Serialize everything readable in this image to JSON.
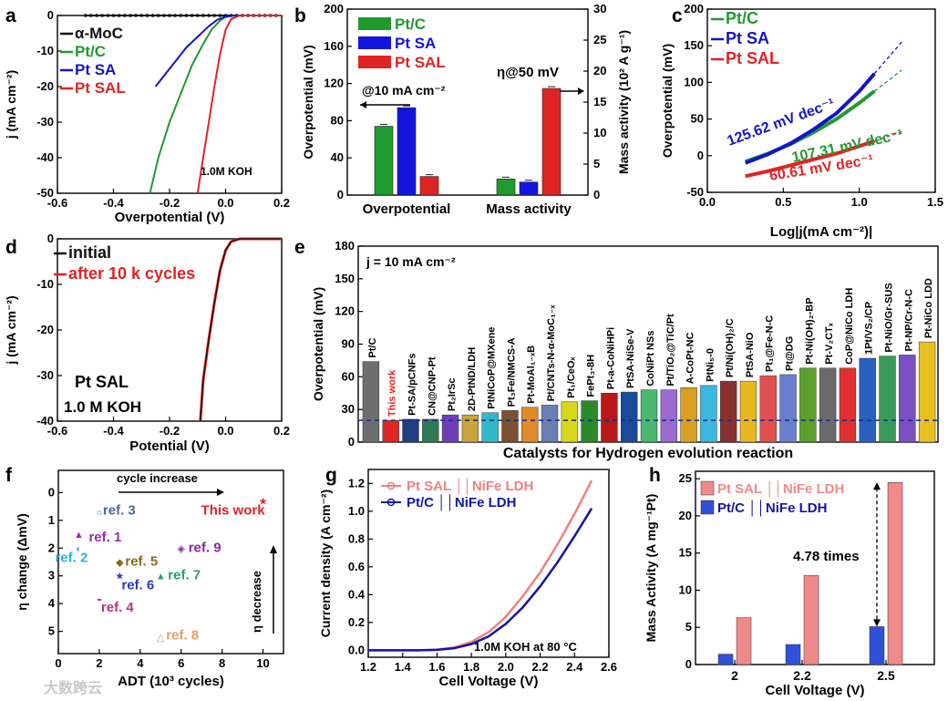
{
  "chart_data": [
    {
      "panel": "a",
      "type": "line",
      "xlabel": "Overpotential (V)",
      "ylabel": "j (mA cm⁻²)",
      "xlim": [
        -0.6,
        0.2
      ],
      "ylim": [
        -50,
        0
      ],
      "xticks": [
        "-0.6",
        "-0.4",
        "-0.2",
        "0.0",
        "0.2"
      ],
      "yticks": [
        "0",
        "-10",
        "-20",
        "-30",
        "-40",
        "-50"
      ],
      "annotation": "1.0M KOH",
      "series": [
        {
          "name": "α-MoC",
          "color": "#111111",
          "x": [
            -0.5,
            -0.4,
            -0.3,
            -0.2,
            -0.1,
            0.0,
            0.1,
            0.2
          ],
          "y": [
            0,
            0,
            0,
            0,
            0,
            0,
            0,
            0
          ]
        },
        {
          "name": "Pt/C",
          "color": "#1f9a2f",
          "x": [
            -0.27,
            -0.24,
            -0.2,
            -0.16,
            -0.12,
            -0.08,
            -0.05,
            -0.02,
            0.0,
            0.03,
            0.2
          ],
          "y": [
            -50,
            -40,
            -30,
            -22,
            -14,
            -8,
            -4,
            -1.5,
            -0.4,
            0,
            0
          ]
        },
        {
          "name": "Pt SA",
          "color": "#1414c8",
          "x": [
            -0.25,
            -0.22,
            -0.18,
            -0.14,
            -0.1,
            -0.06,
            -0.03,
            0.0,
            0.03,
            0.2
          ],
          "y": [
            -20,
            -17,
            -13,
            -9,
            -6,
            -3,
            -1.2,
            -0.3,
            0,
            0
          ]
        },
        {
          "name": "Pt SAL",
          "color": "#e02424",
          "x": [
            -0.1,
            -0.08,
            -0.06,
            -0.04,
            -0.02,
            0.0,
            0.02,
            0.05,
            0.2
          ],
          "y": [
            -50,
            -40,
            -30,
            -20,
            -11,
            -4,
            -1,
            0,
            0
          ]
        }
      ]
    },
    {
      "panel": "b",
      "type": "bar",
      "categories": [
        "Overpotential",
        "Mass activity"
      ],
      "ylabel": "Overpotential (mV)",
      "y2label": "Mass activity (10² A g⁻¹)",
      "ylim": [
        0,
        200
      ],
      "y2lim": [
        0,
        30
      ],
      "yticks": [
        "0",
        "40",
        "80",
        "120",
        "160",
        "200"
      ],
      "y2ticks": [
        "0",
        "5",
        "10",
        "15",
        "20",
        "25",
        "30"
      ],
      "annotations": [
        "@10 mA cm⁻²",
        "η@50 mV"
      ],
      "series": [
        {
          "name": "Pt/C",
          "color": "#1f9a2f",
          "values": [
            74,
            2.6
          ]
        },
        {
          "name": "Pt SA",
          "color": "#1414e0",
          "values": [
            94,
            2.1
          ]
        },
        {
          "name": "Pt SAL",
          "color": "#e02424",
          "values": [
            20,
            17.2
          ]
        }
      ]
    },
    {
      "panel": "c",
      "type": "line",
      "xlabel": "Log|j(mA cm⁻²)|",
      "ylabel": "Overpotential (mV)",
      "xlim": [
        0.0,
        1.5
      ],
      "ylim": [
        -50,
        200
      ],
      "xticks": [
        "0.0",
        "0.5",
        "1.0",
        "1.5"
      ],
      "yticks": [
        "-50",
        "0",
        "50",
        "100",
        "150",
        "200"
      ],
      "series": [
        {
          "name": "Pt/C",
          "color": "#1f9a2f",
          "slope_label": "107.31 mV dec⁻¹",
          "x": [
            0.25,
            0.4,
            0.55,
            0.7,
            0.85,
            1.0,
            1.1
          ],
          "y": [
            -8,
            3,
            16,
            32,
            50,
            72,
            88
          ]
        },
        {
          "name": "Pt SA",
          "color": "#1414c8",
          "slope_label": "125.62 mV dec⁻¹",
          "x": [
            0.25,
            0.4,
            0.55,
            0.7,
            0.85,
            1.0,
            1.1
          ],
          "y": [
            -10,
            2,
            17,
            36,
            58,
            88,
            112
          ]
        },
        {
          "name": "Pt SAL",
          "color": "#e02424",
          "slope_label": "60.61 mV dec⁻¹",
          "x": [
            0.25,
            0.4,
            0.55,
            0.7,
            0.85,
            1.0,
            1.1
          ],
          "y": [
            -28,
            -21,
            -13,
            -5,
            3,
            13,
            20
          ]
        }
      ]
    },
    {
      "panel": "d",
      "type": "line",
      "xlabel": "Potential (V)",
      "ylabel": "j (mA cm⁻²)",
      "xlim": [
        -0.6,
        0.2
      ],
      "ylim": [
        -40,
        0
      ],
      "xticks": [
        "-0.6",
        "-0.4",
        "-0.2",
        "0.0",
        "0.2"
      ],
      "yticks": [
        "0",
        "-10",
        "-20",
        "-30",
        "-40"
      ],
      "annotations": [
        "Pt SAL",
        "1.0 M KOH"
      ],
      "series": [
        {
          "name": "initial",
          "color": "#111111",
          "x": [
            -0.09,
            -0.08,
            -0.06,
            -0.04,
            -0.02,
            0.0,
            0.02,
            0.05,
            0.2
          ],
          "y": [
            -40,
            -31,
            -22,
            -14,
            -7,
            -2.5,
            -0.6,
            0,
            0
          ]
        },
        {
          "name": "after 10 k cycles",
          "color": "#e02424",
          "x": [
            -0.09,
            -0.08,
            -0.06,
            -0.04,
            -0.02,
            0.0,
            0.02,
            0.05,
            0.2
          ],
          "y": [
            -40,
            -31,
            -22,
            -14,
            -7,
            -2.5,
            -0.6,
            0,
            0
          ]
        }
      ]
    },
    {
      "panel": "e",
      "type": "bar",
      "title": "j = 10 mA cm⁻²",
      "xlabel": "Catalysts for Hydrogen evolution reaction",
      "ylabel": "Overpotential (mV)",
      "ylim": [
        0,
        180
      ],
      "yticks": [
        "0",
        "30",
        "60",
        "90",
        "120",
        "150",
        "180"
      ],
      "reference_line": 20,
      "categories": [
        "Pt/C",
        "This work",
        "Pt-SA/pCNFs",
        "CN@CNP-Pt",
        "Pt₂IrSc",
        "2D-PtND/LDH",
        "PtNiCoP@MXene",
        "Pt₃Fe/NMCS-A",
        "Pt-MoAl₁₋ₓB",
        "Pt/CNTs-N-α-MoC₁₋ₓ",
        "Pt₁/CeOₓ",
        "FePt₃-8H",
        "Pt-a-CoNiHPi",
        "PtSA-NiSe-V",
        "CoNiPt NSs",
        "Pt/TiO₂@TiC/Pt",
        "A-CoPt-NC",
        "PtNi₅-0",
        "Pt/Ni(OH)₂/C",
        "PtSA-NiO",
        "Pt₁@Fe-N-C",
        "Pt@DG",
        "Pt-Ni(OH)₂-BP",
        "Pt-V₂CTₓ",
        "CoP@NiCo LDH",
        "1Pt/VS₂/CP",
        "Pt-NiO/Gr-SUS",
        "Pt-NP/Cr-N-C",
        "Pt-NiCo LDD"
      ],
      "values": [
        74,
        20,
        21,
        21,
        25,
        25,
        27,
        29,
        32,
        34,
        37,
        38,
        45,
        46,
        48,
        48,
        50,
        52,
        56,
        56,
        61,
        62,
        68,
        68,
        68,
        77,
        79,
        80,
        92
      ],
      "colors": [
        "#6e6e6e",
        "#e02424",
        "#1e3f80",
        "#2f7a55",
        "#6f3fb5",
        "#c9a33a",
        "#2fb8c8",
        "#7a5030",
        "#e08a2a",
        "#6a7fb0",
        "#d8d81a",
        "#2a8a2a",
        "#b81818",
        "#1a4a9a",
        "#4ab870",
        "#9a6ad0",
        "#d8a020",
        "#3ab8e0",
        "#8a3030",
        "#e8b820",
        "#e05050",
        "#6a7fd0",
        "#5aa02a",
        "#6a6a6a",
        "#e03030",
        "#2a60c0",
        "#3a9a5a",
        "#7a50c0",
        "#e8c020"
      ]
    },
    {
      "panel": "f",
      "type": "scatter",
      "xlabel": "ADT (10³ cycles)",
      "ylabel": "η change (ΔmV)",
      "xlim": [
        0,
        11
      ],
      "ylim": [
        5.8,
        -0.8
      ],
      "xticks": [
        "0",
        "2",
        "4",
        "6",
        "8",
        "10"
      ],
      "yticks": [
        "0",
        "1",
        "2",
        "3",
        "4",
        "5"
      ],
      "annotations": [
        "cycle increase",
        "η decrease"
      ],
      "points": [
        {
          "label": "ref. 1",
          "x": 1.0,
          "y": 1.5,
          "color": "#9a2ab0",
          "marker": "▲"
        },
        {
          "label": "ref. 2",
          "x": 1.0,
          "y": 2.0,
          "color": "#2ab0e0",
          "marker": "◐"
        },
        {
          "label": "ref. 3",
          "x": 2.0,
          "y": 0.7,
          "color": "#4a6a9a",
          "marker": "○"
        },
        {
          "label": "ref. 4",
          "x": 2.0,
          "y": 3.8,
          "color": "#b8308a",
          "marker": "◒"
        },
        {
          "label": "ref. 5",
          "x": 3.0,
          "y": 2.5,
          "color": "#8a6a1a",
          "marker": "◆"
        },
        {
          "label": "ref. 6",
          "x": 3.0,
          "y": 3.0,
          "color": "#2a3ab8",
          "marker": "★"
        },
        {
          "label": "ref. 7",
          "x": 5.0,
          "y": 3.0,
          "color": "#2a9a7a",
          "marker": "▲"
        },
        {
          "label": "ref. 8",
          "x": 5.0,
          "y": 5.2,
          "color": "#e8a060",
          "marker": "△"
        },
        {
          "label": "ref. 9",
          "x": 6.0,
          "y": 2.0,
          "color": "#8a2a9a",
          "marker": "◈"
        },
        {
          "label": "This work",
          "x": 10.0,
          "y": 0.3,
          "color": "#e02424",
          "marker": "★"
        }
      ]
    },
    {
      "panel": "g",
      "type": "line",
      "xlabel": "Cell Voltage (V)",
      "ylabel": "Current density (A cm⁻²)",
      "xlim": [
        1.2,
        2.6
      ],
      "ylim": [
        -0.05,
        1.3
      ],
      "xticks": [
        "1.2",
        "1.4",
        "1.6",
        "1.8",
        "2.0",
        "2.2",
        "2.4",
        "2.6"
      ],
      "yticks": [
        "0.0",
        "0.2",
        "0.4",
        "0.6",
        "0.8",
        "1.0",
        "1.2"
      ],
      "annotation": "1.0M KOH at 80 °C",
      "series": [
        {
          "name": "Pt SAL ││NiFe LDH",
          "color": "#f08080",
          "x": [
            1.2,
            1.5,
            1.6,
            1.7,
            1.8,
            1.9,
            2.0,
            2.1,
            2.2,
            2.3,
            2.4,
            2.5
          ],
          "y": [
            0,
            0,
            0.005,
            0.02,
            0.06,
            0.13,
            0.24,
            0.39,
            0.56,
            0.76,
            0.98,
            1.22
          ]
        },
        {
          "name": "Pt/C ││NiFe LDH",
          "color": "#1414a8",
          "x": [
            1.2,
            1.5,
            1.6,
            1.7,
            1.8,
            1.9,
            2.0,
            2.1,
            2.2,
            2.3,
            2.4,
            2.5
          ],
          "y": [
            0,
            0,
            0.003,
            0.015,
            0.045,
            0.1,
            0.19,
            0.31,
            0.46,
            0.63,
            0.82,
            1.02
          ]
        }
      ]
    },
    {
      "panel": "h",
      "type": "bar",
      "xlabel": "Cell Voltage (V)",
      "ylabel": "Mass Activity (A mg⁻¹Pt)",
      "categories": [
        "2",
        "2.2",
        "2.5"
      ],
      "ylim": [
        0,
        26
      ],
      "yticks": [
        "0",
        "5",
        "10",
        "15",
        "20",
        "25"
      ],
      "annotation": "4.78 times",
      "series": [
        {
          "name": "Pt/C ││NiFe LDH",
          "color": "#3050d8",
          "values": [
            1.4,
            2.7,
            5.1
          ]
        },
        {
          "name": "Pt SAL ││NiFe LDH",
          "color": "#f08a8a",
          "values": [
            6.3,
            12.0,
            24.5
          ]
        }
      ]
    }
  ],
  "panel_labels": [
    "a",
    "b",
    "c",
    "d",
    "e",
    "f",
    "g",
    "h"
  ],
  "watermark": "大数跨云"
}
